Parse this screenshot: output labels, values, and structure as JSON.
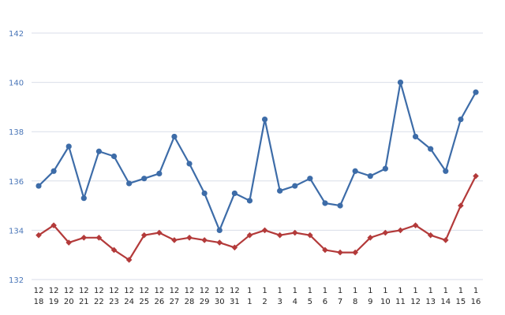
{
  "chart_data": {
    "type": "line",
    "title": "",
    "xlabel": "",
    "ylabel": "",
    "ylim": [
      132,
      142
    ],
    "yticks": [
      132,
      134,
      136,
      138,
      140,
      142
    ],
    "grid": true,
    "legend": "none",
    "categories": [
      [
        "12",
        "18"
      ],
      [
        "12",
        "19"
      ],
      [
        "12",
        "20"
      ],
      [
        "12",
        "21"
      ],
      [
        "12",
        "22"
      ],
      [
        "12",
        "23"
      ],
      [
        "12",
        "24"
      ],
      [
        "12",
        "25"
      ],
      [
        "12",
        "26"
      ],
      [
        "12",
        "27"
      ],
      [
        "12",
        "28"
      ],
      [
        "12",
        "29"
      ],
      [
        "12",
        "30"
      ],
      [
        "12",
        "31"
      ],
      [
        "1",
        "1"
      ],
      [
        "1",
        "2"
      ],
      [
        "1",
        "3"
      ],
      [
        "1",
        "4"
      ],
      [
        "1",
        "5"
      ],
      [
        "1",
        "6"
      ],
      [
        "1",
        "7"
      ],
      [
        "1",
        "8"
      ],
      [
        "1",
        "9"
      ],
      [
        "1",
        "10"
      ],
      [
        "1",
        "11"
      ],
      [
        "1",
        "12"
      ],
      [
        "1",
        "13"
      ],
      [
        "1",
        "14"
      ],
      [
        "1",
        "15"
      ],
      [
        "1",
        "16"
      ]
    ],
    "series": [
      {
        "color": "#3d6ca8",
        "marker": "circle",
        "values": [
          135.8,
          136.4,
          137.4,
          135.3,
          137.2,
          137.0,
          135.9,
          136.1,
          136.3,
          137.8,
          136.7,
          135.5,
          134.0,
          135.5,
          135.2,
          138.5,
          135.6,
          135.8,
          136.1,
          135.1,
          135.0,
          136.4,
          136.2,
          136.5,
          140.0,
          137.8,
          137.3,
          136.4,
          138.5,
          139.6
        ]
      },
      {
        "color": "#b33a3a",
        "marker": "diamond",
        "values": [
          133.8,
          134.2,
          133.5,
          133.7,
          133.7,
          133.2,
          132.8,
          133.8,
          133.9,
          133.6,
          133.7,
          133.6,
          133.5,
          133.3,
          133.8,
          134.0,
          133.8,
          133.9,
          133.8,
          133.2,
          133.1,
          133.1,
          133.7,
          133.9,
          134.0,
          134.2,
          133.8,
          133.6,
          135.0,
          136.2
        ]
      }
    ]
  }
}
